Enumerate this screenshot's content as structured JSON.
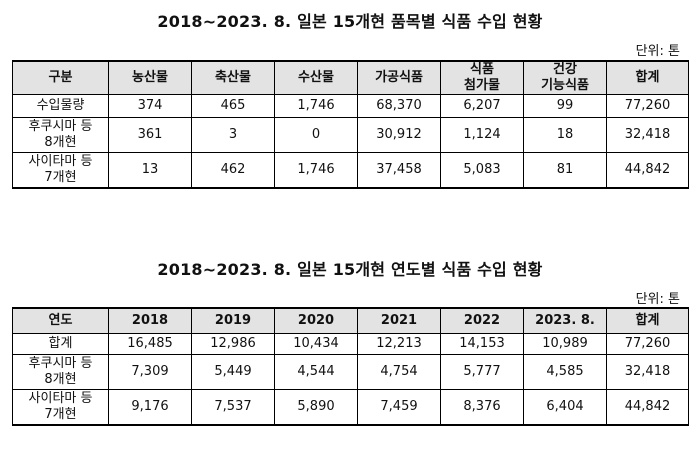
{
  "table1": {
    "title": "2018~2023. 8. 일본 15개현 품목별 식품 수입 현황",
    "unit": "단위: 톤",
    "headers": [
      "구분",
      "농산물",
      "축산물",
      "수산물",
      "가공식품",
      "식품\n첨가물",
      "건강\n기능식품",
      "합계"
    ],
    "rows": [
      [
        "수입물량",
        "374",
        "465",
        "1,746",
        "68,370",
        "6,207",
        "99",
        "77,260"
      ],
      [
        "후쿠시마 등\n8개현",
        "361",
        "3",
        "0",
        "30,912",
        "1,124",
        "18",
        "32,418"
      ],
      [
        "사이타마 등\n7개현",
        "13",
        "462",
        "1,746",
        "37,458",
        "5,083",
        "81",
        "44,842"
      ]
    ]
  },
  "table2": {
    "title": "2018~2023. 8. 일본 15개현 연도별 식품 수입 현황",
    "unit": "단위: 톤",
    "headers": [
      "연도",
      "2018",
      "2019",
      "2020",
      "2021",
      "2022",
      "2023. 8.",
      "합계"
    ],
    "rows": [
      [
        "합계",
        "16,485",
        "12,986",
        "10,434",
        "12,213",
        "14,153",
        "10,989",
        "77,260"
      ],
      [
        "후쿠시마 등\n8개현",
        "7,309",
        "5,449",
        "4,544",
        "4,754",
        "5,777",
        "4,585",
        "32,418"
      ],
      [
        "사이타마 등\n7개현",
        "9,176",
        "7,537",
        "5,890",
        "7,459",
        "8,376",
        "6,404",
        "44,842"
      ]
    ]
  }
}
